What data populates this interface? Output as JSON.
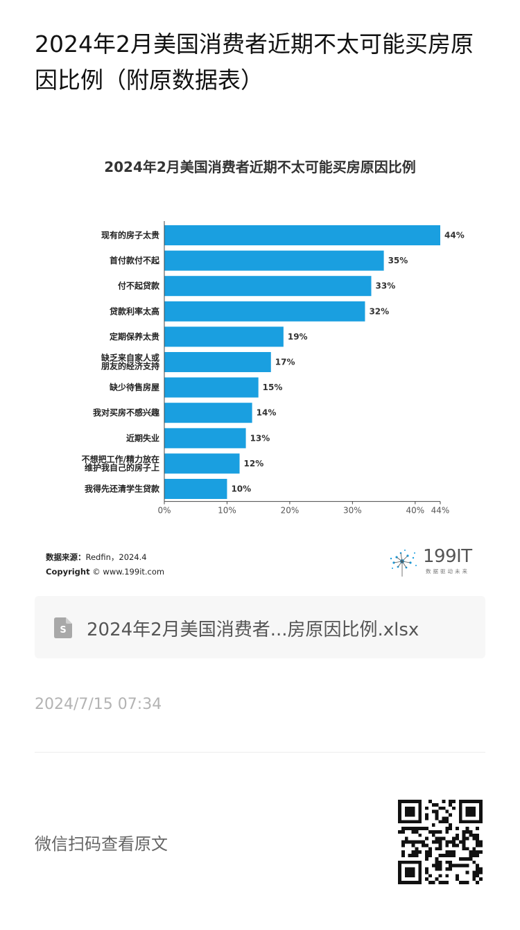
{
  "page": {
    "title": "2024年2月美国消费者近期不太可能买房原因比例（附原数据表）"
  },
  "chart_data": {
    "type": "bar",
    "orientation": "horizontal",
    "title": "2024年2月美国消费者近期不太可能买房原因比例",
    "categories": [
      "现有的房子太贵",
      "首付款付不起",
      "付不起贷款",
      "贷款利率太高",
      "定期保养太贵",
      "缺乏来自家人或\n朋友的经济支持",
      "缺少待售房屋",
      "我对买房不感兴趣",
      "近期失业",
      "不想把工作/精力放在\n维护我自己的房子上",
      "我得先还清学生贷款"
    ],
    "values": [
      44,
      35,
      33,
      32,
      19,
      17,
      15,
      14,
      13,
      12,
      10
    ],
    "value_labels": [
      "44%",
      "35%",
      "33%",
      "32%",
      "19%",
      "17%",
      "15%",
      "14%",
      "13%",
      "12%",
      "10%"
    ],
    "xlim": [
      0,
      44
    ],
    "x_ticks": [
      0,
      10,
      20,
      30,
      40,
      44
    ],
    "x_tick_labels": [
      "0%",
      "10%",
      "20%",
      "30%",
      "40%",
      "44%"
    ],
    "bar_color": "#1a9fe0",
    "grid": false,
    "legend": "none"
  },
  "source": {
    "label": "数据来源：",
    "value": "Redfin，2024.4",
    "copyright_label": "Copyright",
    "copyright_value": "© www.199it.com"
  },
  "logo": {
    "text": "199IT",
    "subtext": "数据驱动未来"
  },
  "attachment": {
    "filename": "2024年2月美国消费者...房原因比例.xlsx",
    "icon": "spreadsheet-file-icon"
  },
  "meta": {
    "timestamp": "2024/7/15 07:34",
    "scan_prompt": "微信扫码查看原文"
  },
  "colors": {
    "accent": "#1a9fe0",
    "muted": "#b3b3b3"
  }
}
